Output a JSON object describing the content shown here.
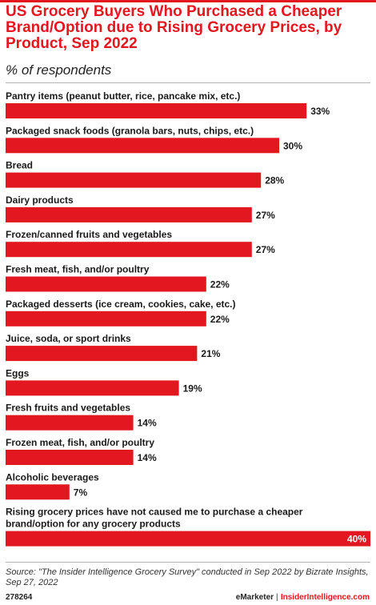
{
  "header": {
    "title": "US Grocery Buyers Who Purchased a Cheaper Brand/Option due to Rising Grocery Prices, by Product, Sep 2022",
    "subtitle": "% of respondents"
  },
  "chart_data": {
    "type": "bar",
    "orientation": "horizontal",
    "bar_color": "#e2171f",
    "value_suffix": "%",
    "categories": [
      "Pantry items (peanut butter, rice, pancake mix, etc.)",
      "Packaged snack foods (granola bars, nuts, chips, etc.)",
      "Bread",
      "Dairy products",
      "Frozen/canned fruits and vegetables",
      "Fresh meat, fish, and/or poultry",
      "Packaged desserts (ice cream, cookies, cake, etc.)",
      "Juice, soda, or sport drinks",
      "Eggs",
      "Fresh fruits and vegetables",
      "Frozen meat, fish, and/or poultry",
      "Alcoholic beverages",
      "Rising grocery prices have not caused me to purchase a cheaper brand/option for any grocery products"
    ],
    "values": [
      33,
      30,
      28,
      27,
      27,
      22,
      22,
      21,
      19,
      14,
      14,
      7,
      40
    ],
    "xlim": [
      0,
      40
    ]
  },
  "footer": {
    "source": "Source: \"The Insider Intelligence Grocery Survey\" conducted in Sep 2022 by Bizrate Insights, Sep 27, 2022",
    "chart_id": "278264",
    "brand": "eMarketer",
    "site": "InsiderIntelligence.com"
  }
}
